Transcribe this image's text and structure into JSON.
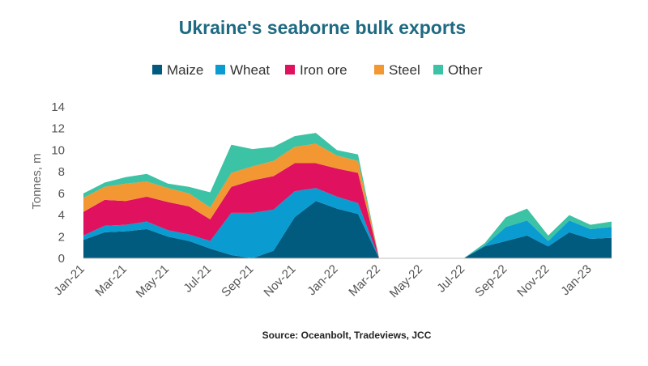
{
  "chart_data": {
    "type": "area",
    "stacked": true,
    "title": "Ukraine's seaborne bulk exports",
    "ylabel": "Tonnes, m",
    "xlabel": "",
    "source": "Source: Oceanbolt, Tradeviews, JCC",
    "ylim": [
      0,
      14
    ],
    "yticks": [
      "0",
      "2",
      "4",
      "6",
      "8",
      "10",
      "12",
      "14"
    ],
    "grid": "none",
    "legend_position": "top",
    "x": [
      "Jan-21",
      "Feb-21",
      "Mar-21",
      "Apr-21",
      "May-21",
      "Jun-21",
      "Jul-21",
      "Aug-21",
      "Sep-21",
      "Oct-21",
      "Nov-21",
      "Dec-21",
      "Jan-22",
      "Feb-22",
      "Mar-22",
      "Apr-22",
      "May-22",
      "Jun-22",
      "Jul-22",
      "Aug-22",
      "Sep-22",
      "Oct-22",
      "Nov-22",
      "Dec-22",
      "Jan-23",
      "Feb-23"
    ],
    "xtick_labels": [
      "Jan-21",
      "Mar-21",
      "May-21",
      "Jul-21",
      "Sep-21",
      "Nov-21",
      "Jan-22",
      "Mar-22",
      "May-22",
      "Jul-22",
      "Sep-22",
      "Nov-22",
      "Jan-23"
    ],
    "series": [
      {
        "name": "Maize",
        "color": "#005b7f",
        "values": [
          1.7,
          2.4,
          2.5,
          2.7,
          2.0,
          1.6,
          0.9,
          0.3,
          0.0,
          0.7,
          3.8,
          5.3,
          4.6,
          4.1,
          0.0,
          0.0,
          0.0,
          0.0,
          0.0,
          1.1,
          1.6,
          2.1,
          1.1,
          2.4,
          1.8,
          1.9
        ]
      },
      {
        "name": "Wheat",
        "color": "#0a9bd0",
        "values": [
          0.4,
          0.6,
          0.6,
          0.7,
          0.6,
          0.6,
          0.7,
          3.9,
          4.2,
          3.8,
          2.4,
          1.2,
          1.1,
          1.0,
          0.0,
          0.0,
          0.0,
          0.0,
          0.0,
          0.1,
          1.3,
          1.4,
          0.5,
          1.1,
          0.9,
          1.0
        ]
      },
      {
        "name": "Iron ore",
        "color": "#e0115f",
        "values": [
          2.2,
          2.4,
          2.2,
          2.3,
          2.6,
          2.6,
          2.0,
          2.4,
          3.0,
          3.1,
          2.6,
          2.3,
          2.6,
          2.8,
          0.0,
          0.0,
          0.0,
          0.0,
          0.0,
          0.0,
          0.0,
          0.0,
          0.0,
          0.0,
          0.0,
          0.0
        ]
      },
      {
        "name": "Steel",
        "color": "#f39732",
        "values": [
          1.3,
          1.2,
          1.6,
          1.4,
          1.3,
          1.2,
          1.1,
          1.3,
          1.3,
          1.4,
          1.5,
          1.8,
          1.2,
          1.1,
          0.0,
          0.0,
          0.0,
          0.0,
          0.0,
          0.0,
          0.0,
          0.0,
          0.0,
          0.0,
          0.0,
          0.0
        ]
      },
      {
        "name": "Other",
        "color": "#3cc2a4",
        "values": [
          0.4,
          0.4,
          0.6,
          0.7,
          0.4,
          0.6,
          1.4,
          2.6,
          1.6,
          1.3,
          1.0,
          1.0,
          0.5,
          0.6,
          0.0,
          0.0,
          0.0,
          0.0,
          0.0,
          0.2,
          0.9,
          1.1,
          0.5,
          0.5,
          0.4,
          0.5
        ]
      }
    ]
  }
}
